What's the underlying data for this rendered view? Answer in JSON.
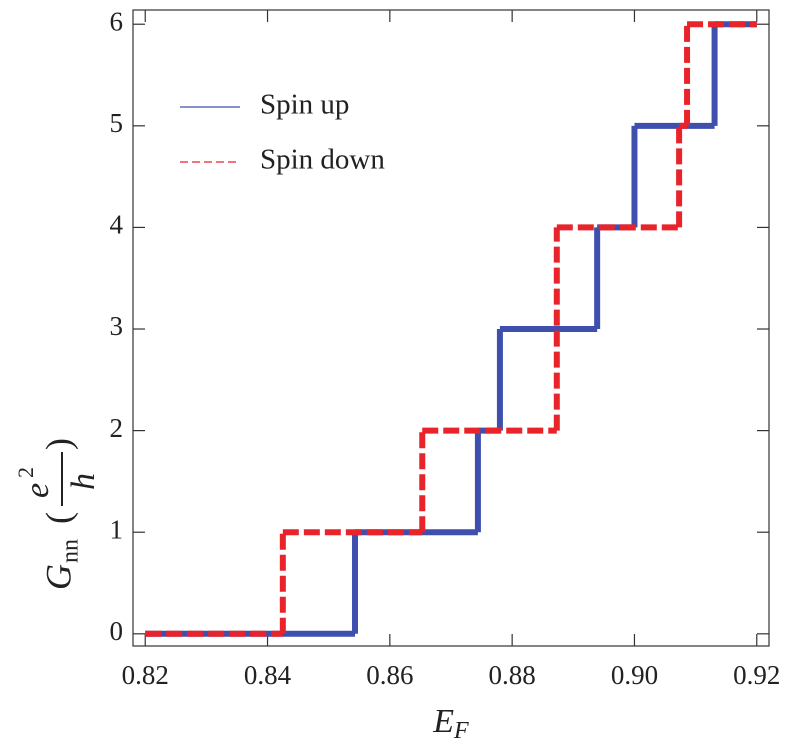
{
  "chart_data": {
    "type": "line",
    "step": "post",
    "xlabel": {
      "symbol": "E",
      "subscript": "F"
    },
    "ylabel": {
      "symbol": "G",
      "subscript": "nn",
      "open": "(",
      "numerator": "e",
      "exponent": "2",
      "denominator": "h",
      "close": ")"
    },
    "series": [
      {
        "name": "Spin up",
        "color": "#3f4fae",
        "dashed": false,
        "x": [
          0.82,
          0.8543,
          0.8744,
          0.878,
          0.8939,
          0.9,
          0.9131,
          0.92
        ],
        "values": [
          0,
          1,
          2,
          3,
          4,
          5,
          6,
          6
        ]
      },
      {
        "name": "Spin down",
        "color": "#e8232a",
        "dashed": true,
        "x": [
          0.82,
          0.8425,
          0.8653,
          0.8873,
          0.9073,
          0.9086,
          0.92
        ],
        "values": [
          0,
          1,
          2,
          4,
          5,
          6,
          6
        ]
      }
    ],
    "xlim": [
      0.818,
      0.922
    ],
    "ylim": [
      -0.12,
      6.14
    ],
    "xticks": [
      0.82,
      0.84,
      0.86,
      0.88,
      {
        "value": 0.9,
        "label": "0.90"
      },
      0.92
    ],
    "yticks": [
      0,
      1,
      2,
      3,
      4,
      5,
      6
    ],
    "legend": "upper-left"
  }
}
